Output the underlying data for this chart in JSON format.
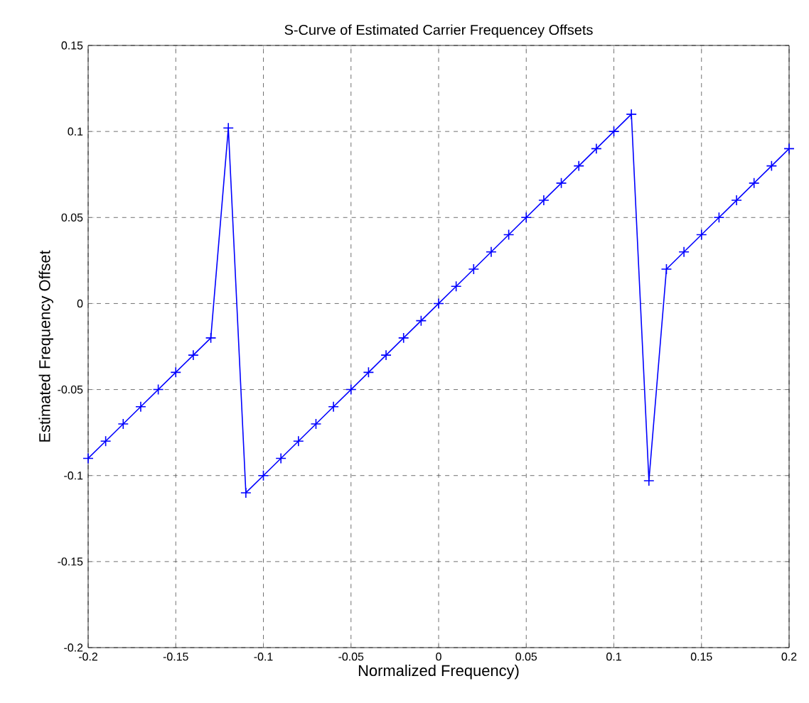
{
  "chart_data": {
    "type": "line",
    "title": "S-Curve of Estimated Carrier Frequencey Offsets",
    "xlabel": "Normalized Frequency)",
    "ylabel": "Estimated Frequency Offset",
    "x": [
      -0.2,
      -0.19,
      -0.18,
      -0.17,
      -0.16,
      -0.15,
      -0.14,
      -0.13,
      -0.12,
      -0.11,
      -0.1,
      -0.09,
      -0.08,
      -0.07,
      -0.06,
      -0.05,
      -0.04,
      -0.03,
      -0.02,
      -0.01,
      0,
      0.01,
      0.02,
      0.03,
      0.04,
      0.05,
      0.06,
      0.07,
      0.08,
      0.09,
      0.1,
      0.11,
      0.12,
      0.13,
      0.14,
      0.15,
      0.16,
      0.17,
      0.18,
      0.19,
      0.2
    ],
    "series": [
      {
        "color": "#0000ff",
        "values": [
          -0.09,
          -0.08,
          -0.07,
          -0.06,
          -0.05,
          -0.04,
          -0.03,
          -0.02,
          0.102,
          -0.11,
          -0.1,
          -0.09,
          -0.08,
          -0.07,
          -0.06,
          -0.05,
          -0.04,
          -0.03,
          -0.02,
          -0.01,
          0,
          0.01,
          0.02,
          0.03,
          0.04,
          0.05,
          0.06,
          0.07,
          0.08,
          0.09,
          0.1,
          0.11,
          -0.103,
          0.02,
          0.03,
          0.04,
          0.05,
          0.06,
          0.07,
          0.08,
          0.09
        ]
      }
    ],
    "xlim": [
      -0.2,
      0.2
    ],
    "ylim": [
      -0.2,
      0.15
    ],
    "xticks": [
      -0.2,
      -0.15,
      -0.1,
      -0.05,
      0,
      0.05,
      0.1,
      0.15,
      0.2
    ],
    "yticks": [
      -0.2,
      -0.15,
      -0.1,
      -0.05,
      0,
      0.05,
      0.1,
      0.15
    ],
    "grid": true,
    "marker": "cross",
    "line_style": "solid"
  }
}
